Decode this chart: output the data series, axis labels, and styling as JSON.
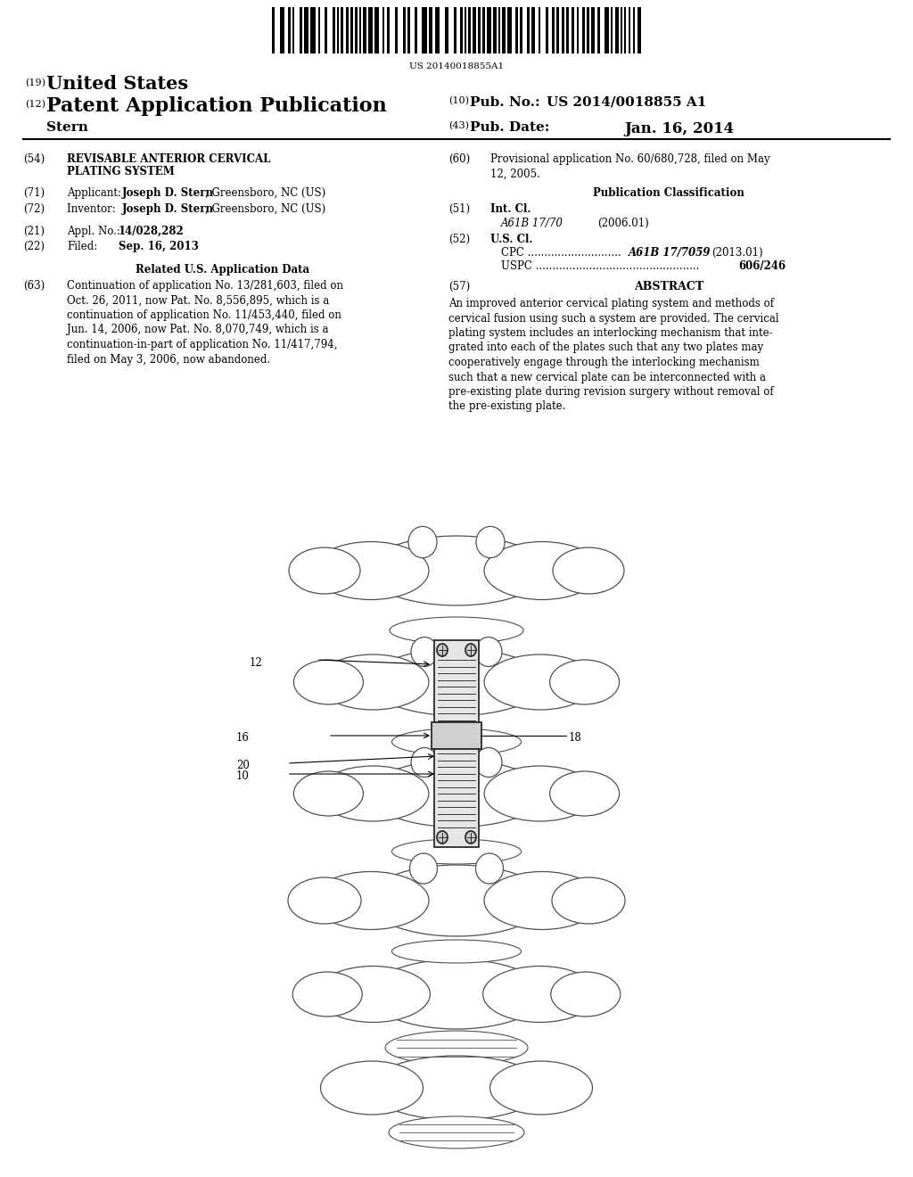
{
  "background_color": "#ffffff",
  "barcode_text": "US 20140018855A1",
  "text_color": "#000000",
  "spine_color": "#505050",
  "plate_color": "#2a2a2a",
  "header": {
    "num_19": "(19)",
    "title_19": "United States",
    "num_12": "(12)",
    "title_12": "Patent Application Publication",
    "num_10": "(10)",
    "pub_no_label": "Pub. No.:",
    "pub_no_value": "US 2014/0018855 A1",
    "num_43": "(43)",
    "pub_date_label": "Pub. Date:",
    "pub_date_value": "Jan. 16, 2014",
    "inventor_line": "Stern"
  },
  "left_col": {
    "f54_num": "(54)",
    "f54_line1": "REVISABLE ANTERIOR CERVICAL",
    "f54_line2": "PLATING SYSTEM",
    "f71_num": "(71)",
    "f71_pre": "Applicant:",
    "f71_bold": "Joseph D. Stern",
    "f71_post": ", Greensboro, NC (US)",
    "f72_num": "(72)",
    "f72_pre": "Inventor: ",
    "f72_bold": "Joseph D. Stern",
    "f72_post": ", Greensboro, NC (US)",
    "f21_num": "(21)",
    "f21_pre": "Appl. No.:",
    "f21_bold": "14/028,282",
    "f22_num": "(22)",
    "f22_pre": "Filed:",
    "f22_bold": "Sep. 16, 2013",
    "related_title": "Related U.S. Application Data",
    "f63_num": "(63)",
    "f63_text": "Continuation of application No. 13/281,603, filed on\nOct. 26, 2011, now Pat. No. 8,556,895, which is a\ncontinuation of application No. 11/453,440, filed on\nJun. 14, 2006, now Pat. No. 8,070,749, which is a\ncontinuation-in-part of application No. 11/417,794,\nfiled on May 3, 2006, now abandoned."
  },
  "right_col": {
    "f60_num": "(60)",
    "f60_text": "Provisional application No. 60/680,728, filed on May\n12, 2005.",
    "pub_class": "Publication Classification",
    "f51_num": "(51)",
    "f51_label": "Int. Cl.",
    "f51_code": "A61B 17/70",
    "f51_year": "(2006.01)",
    "f52_num": "(52)",
    "f52_label": "U.S. Cl.",
    "f52_cpc": "CPC",
    "f52_cpc_dots": " ............................",
    "f52_cpc_code": "A61B 17/7059",
    "f52_cpc_year": "(2013.01)",
    "f52_uspc": "USPC",
    "f52_uspc_dots": " .................................................",
    "f52_uspc_code": "606/246",
    "f57_num": "(57)",
    "f57_title": "ABSTRACT",
    "abstract": "An improved anterior cervical plating system and methods of\ncervical fusion using such a system are provided. The cervical\nplating system includes an interlocking mechanism that inte-\ngrated into each of the plates such that any two plates may\ncooperatively engage through the interlocking mechanism\nsuch that a new cervical plate can be interconnected with a\npre-existing plate during revision surgery without removal of\nthe pre-existing plate."
  },
  "labels": {
    "l12": "12",
    "l16": "16",
    "l18": "18",
    "l20": "20",
    "l10": "10"
  }
}
